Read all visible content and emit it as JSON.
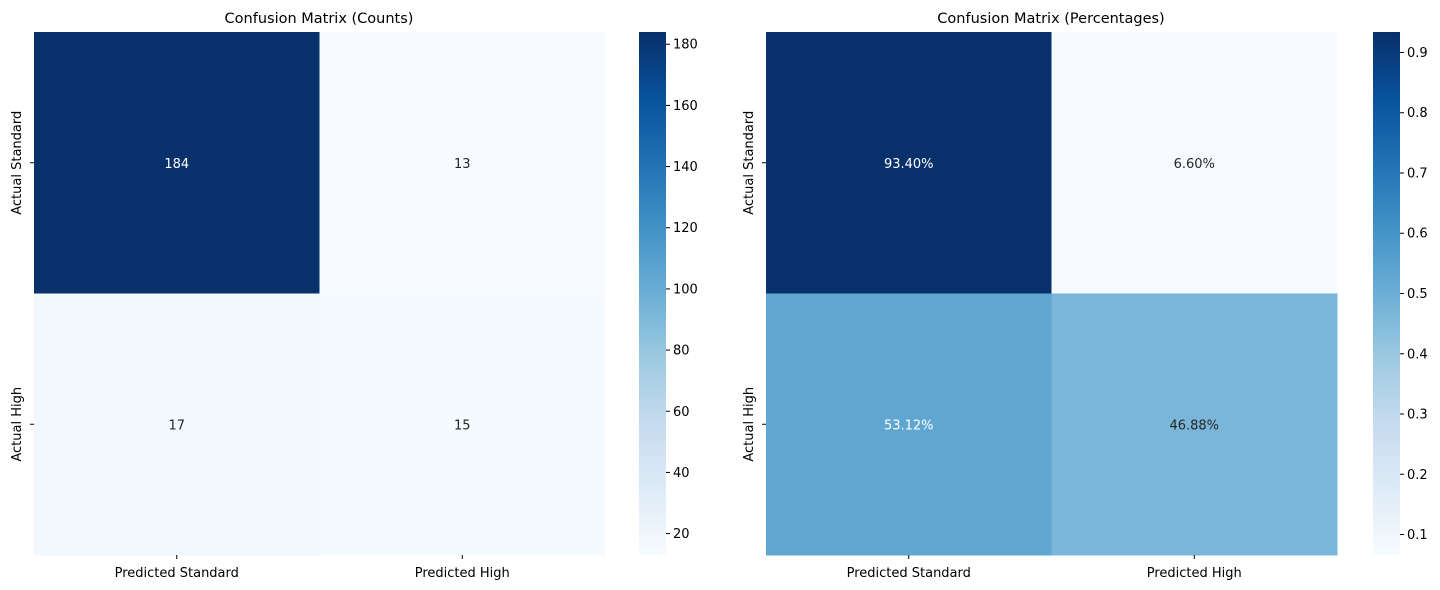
{
  "chart_data": [
    {
      "type": "heatmap",
      "title": "Confusion Matrix (Counts)",
      "x_categories": [
        "Predicted Standard",
        "Predicted High"
      ],
      "y_categories": [
        "Actual Standard",
        "Actual High"
      ],
      "values": [
        [
          184,
          13
        ],
        [
          17,
          15
        ]
      ],
      "cell_labels": [
        [
          "184",
          "13"
        ],
        [
          "17",
          "15"
        ]
      ],
      "colorbar": {
        "range": [
          13,
          184
        ],
        "ticks": [
          20,
          40,
          60,
          80,
          100,
          120,
          140,
          160,
          180
        ],
        "tick_labels": [
          "20",
          "40",
          "60",
          "80",
          "100",
          "120",
          "140",
          "160",
          "180"
        ]
      },
      "colormap": "Blues",
      "xlabel": "",
      "ylabel": ""
    },
    {
      "type": "heatmap",
      "title": "Confusion Matrix (Percentages)",
      "x_categories": [
        "Predicted Standard",
        "Predicted High"
      ],
      "y_categories": [
        "Actual Standard",
        "Actual High"
      ],
      "values": [
        [
          0.934,
          0.066
        ],
        [
          0.5312,
          0.4688
        ]
      ],
      "cell_labels": [
        [
          "93.40%",
          "6.60%"
        ],
        [
          "53.12%",
          "46.88%"
        ]
      ],
      "colorbar": {
        "range": [
          0.066,
          0.934
        ],
        "ticks": [
          0.1,
          0.2,
          0.3,
          0.4,
          0.5,
          0.6,
          0.7,
          0.8,
          0.9
        ],
        "tick_labels": [
          "0.1",
          "0.2",
          "0.3",
          "0.4",
          "0.5",
          "0.6",
          "0.7",
          "0.8",
          "0.9"
        ]
      },
      "colormap": "Blues",
      "xlabel": "",
      "ylabel": ""
    }
  ]
}
